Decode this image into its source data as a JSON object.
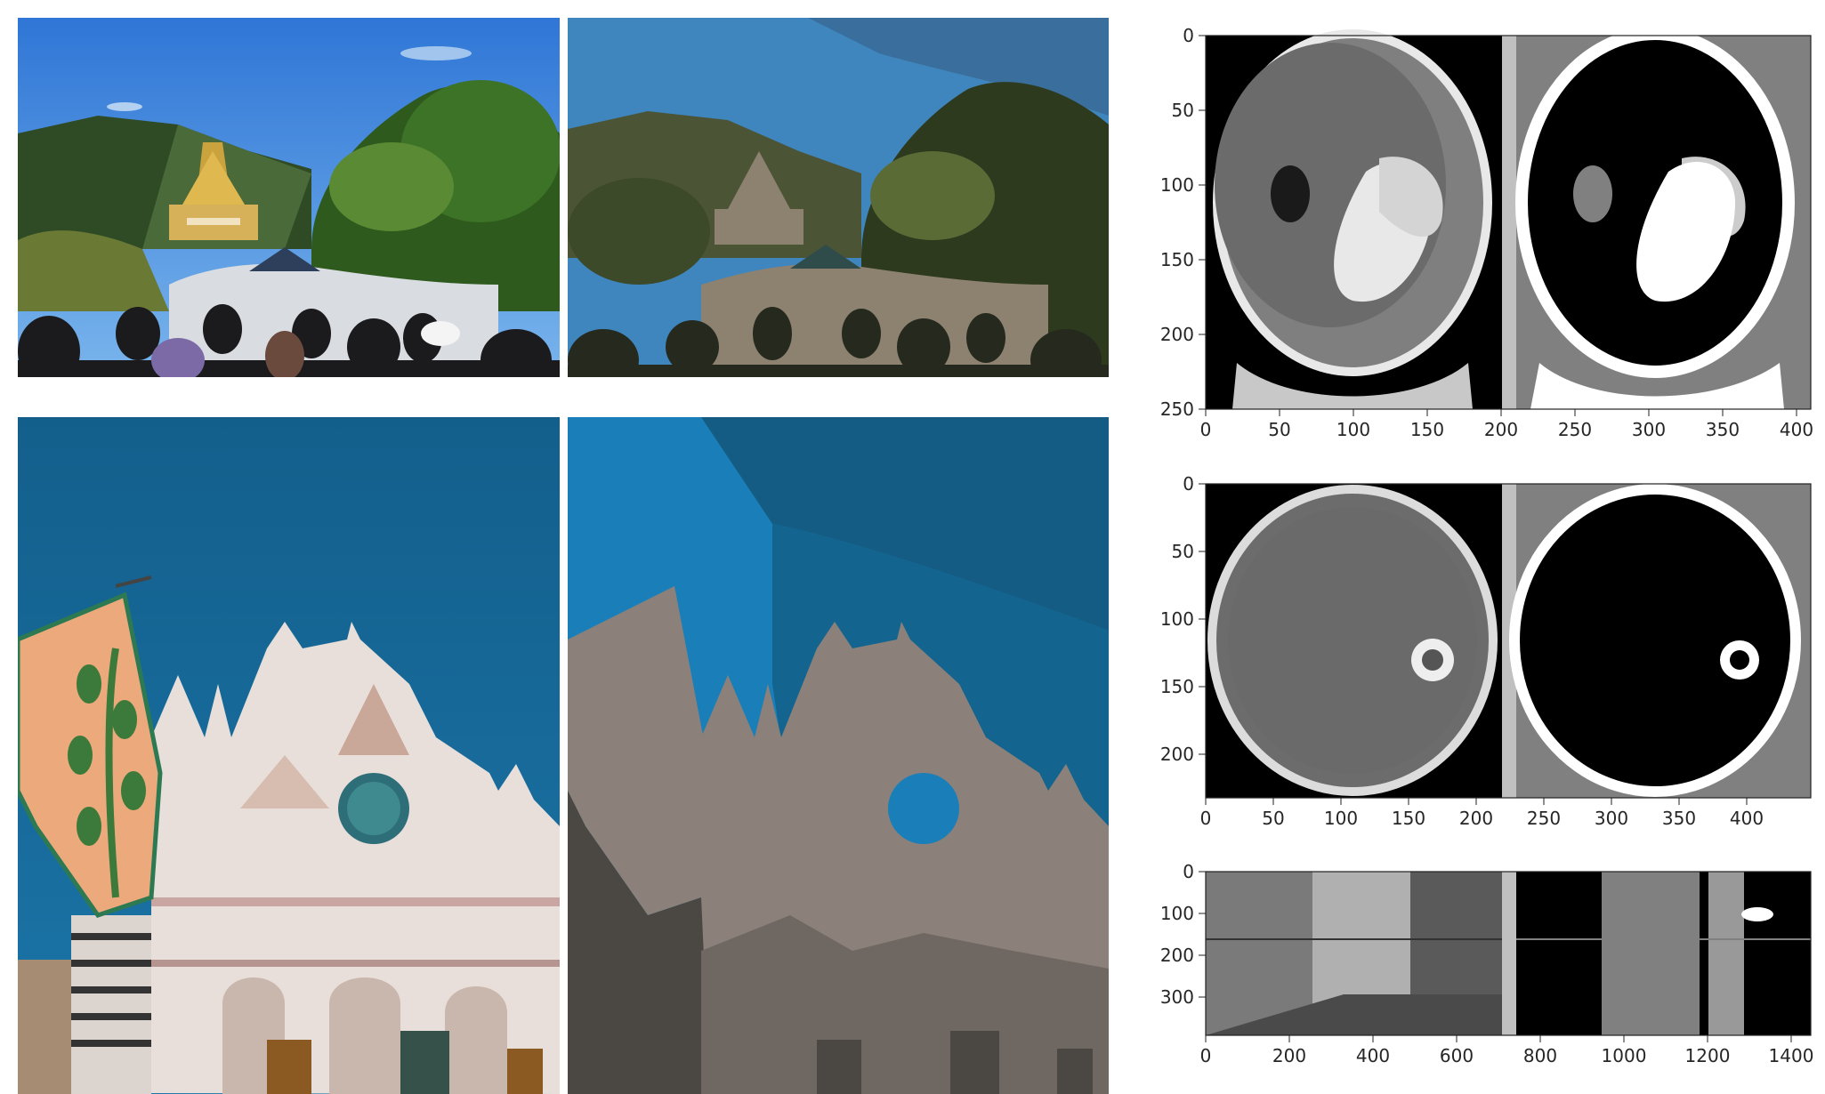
{
  "panels": {
    "temple_original": {
      "subject": "hillside temple with crowd in foreground"
    },
    "temple_segmented": {
      "subject": "color-quantized version of temple scene"
    },
    "cathedral_original": {
      "subject": "gothic cathedral facade with flag"
    },
    "cathedral_segmented": {
      "subject": "color-quantized version of cathedral"
    }
  },
  "plots": [
    {
      "id": "plot-brain-coronal",
      "x_ticks": [
        "0",
        "50",
        "100",
        "150",
        "200",
        "250",
        "300",
        "350",
        "400"
      ],
      "y_ticks": [
        "0",
        "50",
        "100",
        "150",
        "200",
        "250"
      ]
    },
    {
      "id": "plot-brain-axial",
      "x_ticks": [
        "0",
        "50",
        "100",
        "150",
        "200",
        "250",
        "300",
        "350",
        "400"
      ],
      "y_ticks": [
        "0",
        "50",
        "100",
        "150",
        "200"
      ]
    },
    {
      "id": "plot-street",
      "x_ticks": [
        "0",
        "200",
        "400",
        "600",
        "800",
        "1000",
        "1200",
        "1400"
      ],
      "y_ticks": [
        "0",
        "100",
        "200",
        "300"
      ]
    }
  ],
  "colors": {
    "plot_gray": "#808080",
    "separator": "#c0c0c0",
    "sky_blue": "#1f6fb5",
    "segment_gray": "#8a8178"
  }
}
